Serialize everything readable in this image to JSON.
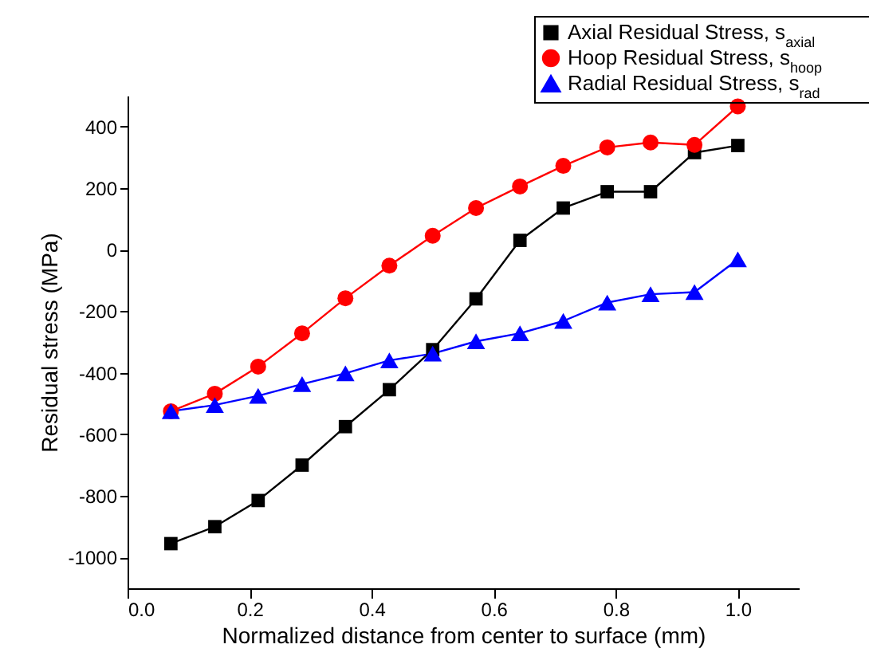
{
  "chart_data": {
    "type": "line",
    "xlabel": "Normalized distance from center to surface (mm)",
    "ylabel": "Residual stress (MPa)",
    "x": [
      0.071,
      0.143,
      0.214,
      0.286,
      0.357,
      0.429,
      0.5,
      0.571,
      0.643,
      0.714,
      0.786,
      0.857,
      0.929,
      1.0
    ],
    "series": [
      {
        "name": "Axial Residual Stress, s$_{axial}$",
        "color": "#000000",
        "marker": "square",
        "values": [
          -955,
          -900,
          -815,
          -700,
          -575,
          -455,
          -325,
          -160,
          30,
          135,
          188,
          188,
          315,
          338
        ]
      },
      {
        "name": "Hoop Residual Stress, s$_{hoop}$",
        "color": "#ff0000",
        "marker": "circle",
        "values": [
          -525,
          -468,
          -380,
          -272,
          -158,
          -52,
          45,
          135,
          205,
          272,
          332,
          348,
          340,
          465
        ]
      },
      {
        "name": "Radial Residual Stress, s$_{rad}$",
        "color": "#0000ff",
        "marker": "triangle",
        "values": [
          -525,
          -505,
          -475,
          -437,
          -402,
          -360,
          -338,
          -298,
          -272,
          -232,
          -172,
          -145,
          -138,
          -32
        ]
      }
    ],
    "xlim": [
      0,
      1.1
    ],
    "ylim": [
      -1100,
      500
    ],
    "xticks": [
      {
        "value": 0,
        "label": "0.0"
      },
      {
        "value": 0.2,
        "label": "0.2"
      },
      {
        "value": 0.4,
        "label": "0.4"
      },
      {
        "value": 0.6,
        "label": "0.6"
      },
      {
        "value": 0.8,
        "label": "0.8"
      },
      {
        "value": 1,
        "label": "1.0"
      }
    ],
    "yticks": [
      -1000,
      -800,
      -600,
      -400,
      -200,
      0,
      200,
      400
    ],
    "grid": false,
    "legend": "top right",
    "line_style": "solid"
  }
}
